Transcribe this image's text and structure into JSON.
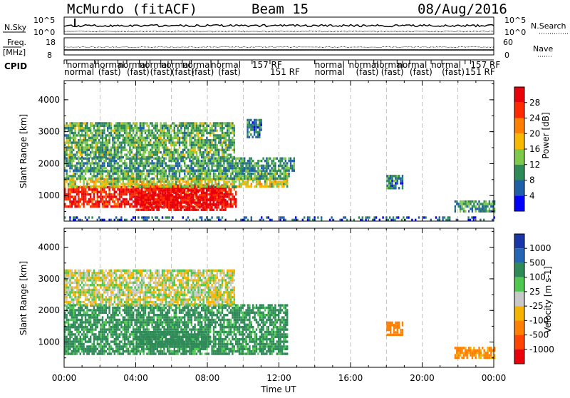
{
  "header": {
    "station": "McMurdo (fitACF)",
    "beam": "Beam 15",
    "date": "08/Aug/2016"
  },
  "top_panels": {
    "nsky_label": "N.Sky",
    "nsky_ticks": [
      "10^5",
      "10^0"
    ],
    "nsearch_label": "N.Search",
    "nsearch_ticks": [
      "10^5",
      "10^0"
    ],
    "freq_label": "Freq.",
    "freq_unit": "[MHz]",
    "freq_ticks": [
      "18",
      "8"
    ],
    "nave_label": "Nave",
    "nave_ticks": [
      "60",
      "0"
    ],
    "cpid_label": "CPID",
    "cpid_entries": [
      {
        "text": "normal",
        "row": 1,
        "t": 0.15
      },
      {
        "text": "normal",
        "row": 2,
        "t": 0.0
      },
      {
        "text": "normal",
        "row": 1,
        "t": 1.7
      },
      {
        "text": "(fast)",
        "row": 2,
        "t": 1.9
      },
      {
        "text": "normal",
        "row": 1,
        "t": 3.0
      },
      {
        "text": "(fast)",
        "row": 2,
        "t": 3.5
      },
      {
        "text": "normal",
        "row": 1,
        "t": 4.2
      },
      {
        "text": "(fast)",
        "row": 2,
        "t": 4.8
      },
      {
        "text": "normal",
        "row": 1,
        "t": 5.4
      },
      {
        "text": "(fast)",
        "row": 2,
        "t": 6.0
      },
      {
        "text": "normal",
        "row": 1,
        "t": 6.6
      },
      {
        "text": "(fast)",
        "row": 2,
        "t": 7.1
      },
      {
        "text": "normal",
        "row": 1,
        "t": 8.2
      },
      {
        "text": "(fast)",
        "row": 2,
        "t": 8.6
      },
      {
        "text": "157  RF",
        "row": 1,
        "t": 10.5
      },
      {
        "text": "151  RF",
        "row": 2,
        "t": 11.5
      },
      {
        "text": "normal",
        "row": 1,
        "t": 14.0
      },
      {
        "text": "normal",
        "row": 2,
        "t": 14.0
      },
      {
        "text": "normal",
        "row": 1,
        "t": 15.9
      },
      {
        "text": "(fast)",
        "row": 2,
        "t": 16.3
      },
      {
        "text": "normal",
        "row": 1,
        "t": 17.3
      },
      {
        "text": "(fast)",
        "row": 2,
        "t": 17.7
      },
      {
        "text": "normal",
        "row": 1,
        "t": 18.6
      },
      {
        "text": "(fast)",
        "row": 2,
        "t": 19.3
      },
      {
        "text": "normal",
        "row": 1,
        "t": 20.5
      },
      {
        "text": "(fast)",
        "row": 2,
        "t": 21.1
      },
      {
        "text": "157  RF",
        "row": 1,
        "t": 22.7
      },
      {
        "text": "151  RF",
        "row": 2,
        "t": 22.4
      }
    ]
  },
  "power_legend": {
    "label": "Power [dB]",
    "ticks": [
      "28",
      "24",
      "20",
      "16",
      "12",
      "8",
      "4"
    ],
    "colors": [
      "#e8000b",
      "#ff2a00",
      "#ff7f00",
      "#f6b800",
      "#7fc94a",
      "#2e8b57",
      "#1f5fa8",
      "#0000ff"
    ]
  },
  "velocity_legend": {
    "label": "Velocity [m s-1]",
    "ticks": [
      "1000",
      "500",
      "100",
      "25",
      "-25",
      "-100",
      "-500",
      "-1000"
    ],
    "colors": [
      "#1836a8",
      "#2466b5",
      "#2e8b57",
      "#4fc84f",
      "#c8c8c8",
      "#f4b400",
      "#ff7f00",
      "#ff4500",
      "#e8000b"
    ]
  },
  "panel_titles": {
    "power_ylabel": "Slant Range [km]",
    "velocity_ylabel": "Slant Range [km]",
    "xlabel": "Time UT"
  },
  "colors": {
    "grid": "#9a9a9a",
    "axis": "#000000"
  },
  "chart_data": [
    {
      "type": "heatmap",
      "name": "Power",
      "xlabel": "Time UT",
      "ylabel": "Slant Range [km]",
      "x_ticks": [
        "00:00",
        "04:00",
        "08:00",
        "12:00",
        "16:00",
        "20:00",
        "00:00"
      ],
      "y_ticks": [
        "1000",
        "2000",
        "3000",
        "4000"
      ],
      "xlim": [
        0,
        24
      ],
      "ylim": [
        200,
        4600
      ],
      "regions": [
        {
          "t0": 0.0,
          "t1": 9.6,
          "r0": 650,
          "r1": 1300,
          "value": 28
        },
        {
          "t0": 4.0,
          "t1": 9.0,
          "r0": 550,
          "r1": 1350,
          "value": 30
        },
        {
          "t0": 0.0,
          "t1": 12.5,
          "r0": 1250,
          "r1": 1550,
          "value": 16
        },
        {
          "t0": 0.0,
          "t1": 12.6,
          "r0": 1550,
          "r1": 1800,
          "value": 12
        },
        {
          "t0": 0.0,
          "t1": 12.8,
          "r0": 1800,
          "r1": 2200,
          "value": 10
        },
        {
          "t0": 0.0,
          "t1": 9.5,
          "r0": 2200,
          "r1": 3300,
          "value": 12
        },
        {
          "t0": 10.2,
          "t1": 11.0,
          "r0": 2800,
          "r1": 3400,
          "value": 8
        },
        {
          "t0": 18.0,
          "t1": 18.9,
          "r0": 1250,
          "r1": 1650,
          "value": 8
        },
        {
          "t0": 21.8,
          "t1": 24.0,
          "r0": 500,
          "r1": 850,
          "value": 10
        },
        {
          "t0": 0.0,
          "t1": 24.0,
          "r0": 230,
          "r1": 350,
          "value": 6
        }
      ]
    },
    {
      "type": "heatmap",
      "name": "Velocity",
      "xlabel": "Time UT",
      "ylabel": "Slant Range [km]",
      "x_ticks": [
        "00:00",
        "04:00",
        "08:00",
        "12:00",
        "16:00",
        "20:00",
        "00:00"
      ],
      "y_ticks": [
        "1000",
        "2000",
        "3000",
        "4000"
      ],
      "xlim": [
        0,
        24
      ],
      "ylim": [
        200,
        4600
      ],
      "regions": [
        {
          "t0": 0.0,
          "t1": 12.5,
          "r0": 650,
          "r1": 2200,
          "value": 150
        },
        {
          "t0": 0.0,
          "t1": 9.5,
          "r0": 2200,
          "r1": 3300,
          "value": 0
        },
        {
          "t0": 4.0,
          "t1": 8.0,
          "r0": 850,
          "r1": 1350,
          "value": 300
        },
        {
          "t0": 18.0,
          "t1": 18.9,
          "r0": 1250,
          "r1": 1650,
          "value": -300
        },
        {
          "t0": 21.8,
          "t1": 24.0,
          "r0": 500,
          "r1": 850,
          "value": -150
        }
      ]
    }
  ]
}
